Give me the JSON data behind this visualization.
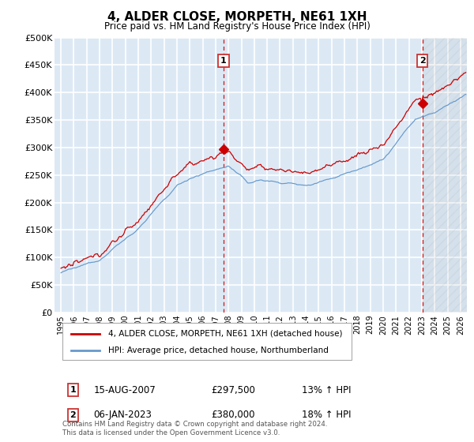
{
  "title": "4, ALDER CLOSE, MORPETH, NE61 1XH",
  "subtitle": "Price paid vs. HM Land Registry's House Price Index (HPI)",
  "ylabel_ticks": [
    "£0",
    "£50K",
    "£100K",
    "£150K",
    "£200K",
    "£250K",
    "£300K",
    "£350K",
    "£400K",
    "£450K",
    "£500K"
  ],
  "ytick_values": [
    0,
    50000,
    100000,
    150000,
    200000,
    250000,
    300000,
    350000,
    400000,
    450000,
    500000
  ],
  "ylim": [
    0,
    500000
  ],
  "xlim_start": 1994.5,
  "xlim_end": 2026.5,
  "marker1_x": 2007.62,
  "marker1_y": 297500,
  "marker1_label": "1",
  "marker1_date": "15-AUG-2007",
  "marker1_price": "£297,500",
  "marker1_hpi": "13% ↑ HPI",
  "marker2_x": 2023.04,
  "marker2_y": 380000,
  "marker2_label": "2",
  "marker2_date": "06-JAN-2023",
  "marker2_price": "£380,000",
  "marker2_hpi": "18% ↑ HPI",
  "line1_color": "#cc0000",
  "line2_color": "#6699cc",
  "background_color": "#dce9f5",
  "grid_color": "#ffffff",
  "legend1_label": "4, ALDER CLOSE, MORPETH, NE61 1XH (detached house)",
  "legend2_label": "HPI: Average price, detached house, Northumberland",
  "footer": "Contains HM Land Registry data © Crown copyright and database right 2024.\nThis data is licensed under the Open Government Licence v3.0.",
  "xtick_years": [
    1995,
    1996,
    1997,
    1998,
    1999,
    2000,
    2001,
    2002,
    2003,
    2004,
    2005,
    2006,
    2007,
    2008,
    2009,
    2010,
    2011,
    2012,
    2013,
    2014,
    2015,
    2016,
    2017,
    2018,
    2019,
    2020,
    2021,
    2022,
    2023,
    2024,
    2025,
    2026
  ]
}
